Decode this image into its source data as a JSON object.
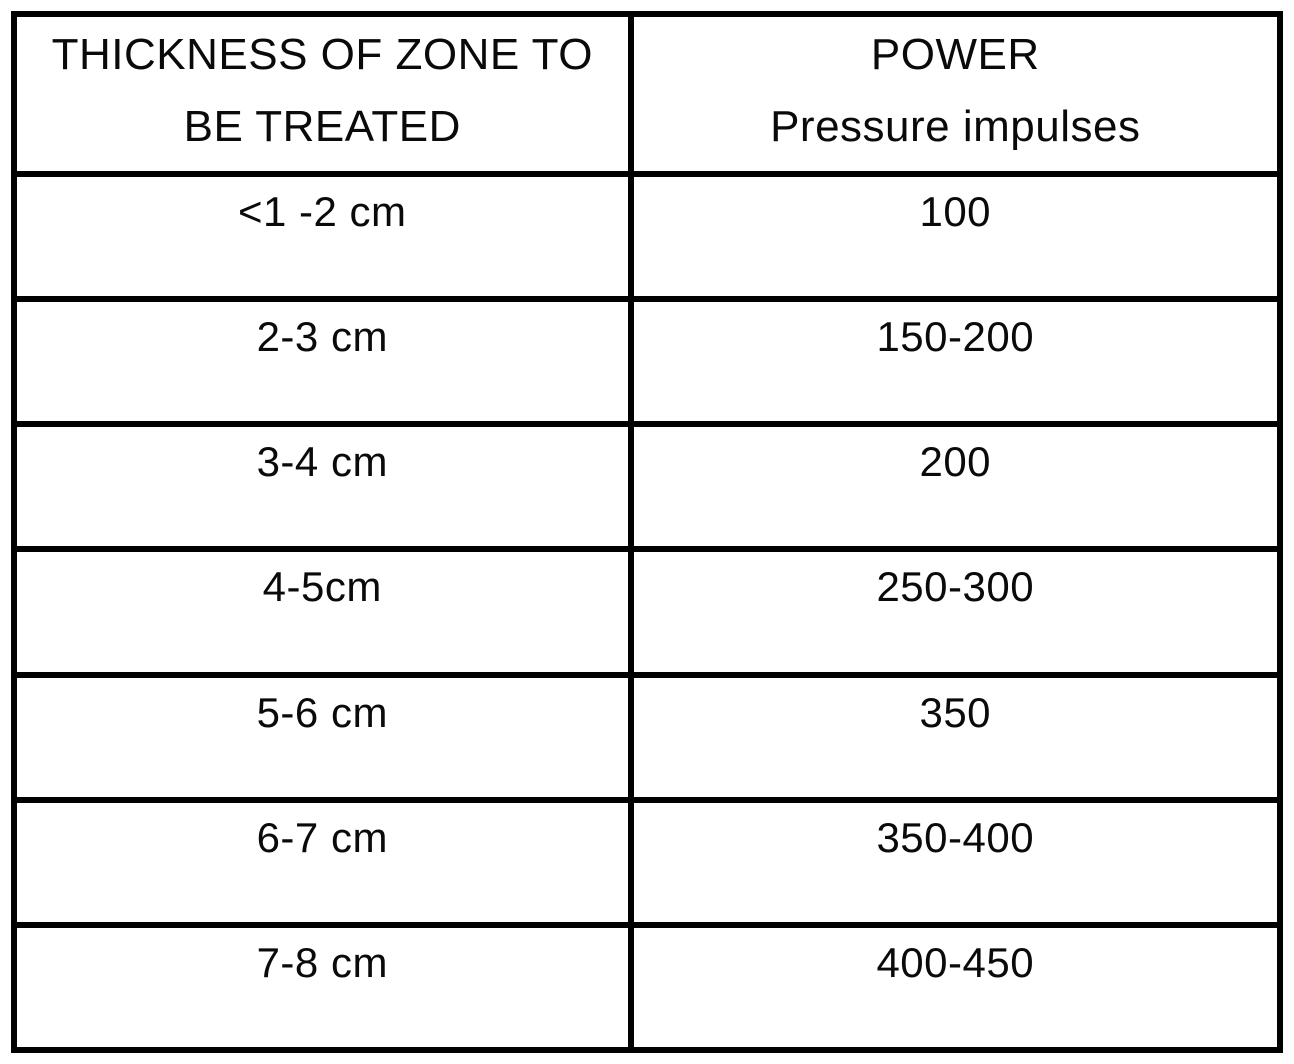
{
  "table": {
    "header": {
      "thickness_line1": "THICKNESS OF ZONE TO",
      "thickness_line2": "BE TREATED",
      "power_line1": "POWER",
      "power_line2": "Pressure impulses"
    },
    "rows": [
      {
        "thickness": "<1 -2 cm",
        "power": "100"
      },
      {
        "thickness": "2-3 cm",
        "power": "150-200"
      },
      {
        "thickness": "3-4 cm",
        "power": "200"
      },
      {
        "thickness": "4-5cm",
        "power": "250-300"
      },
      {
        "thickness": "5-6 cm",
        "power": "350"
      },
      {
        "thickness": "6-7 cm",
        "power": "350-400"
      },
      {
        "thickness": "7-8 cm",
        "power": "400-450"
      }
    ],
    "colors": {
      "border": "#000000",
      "text": "#0a0a0a",
      "background": "#ffffff"
    }
  }
}
